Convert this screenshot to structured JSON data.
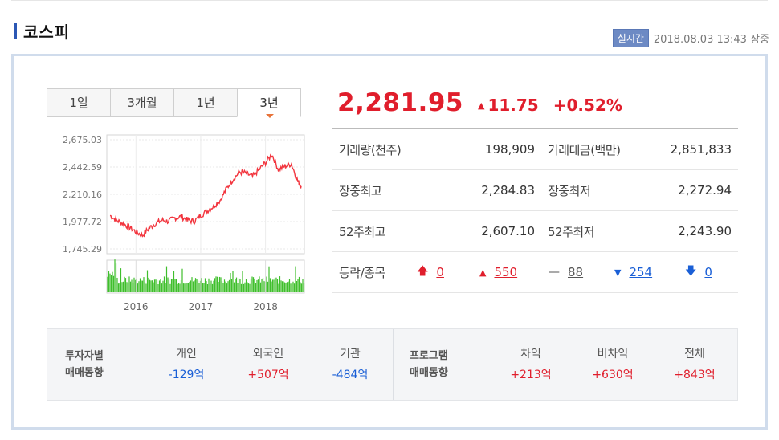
{
  "header": {
    "title": "코스피",
    "badge": "실시간",
    "datetime": "2018.08.03 13:43 장중"
  },
  "tabs": [
    {
      "label": "1일",
      "active": false
    },
    {
      "label": "3개월",
      "active": false
    },
    {
      "label": "1년",
      "active": false
    },
    {
      "label": "3년",
      "active": true
    }
  ],
  "quote": {
    "price": "2,281.95",
    "change": "11.75",
    "change_pct": "+0.52%",
    "direction_icon": "triangle-up-icon",
    "color_up": "#e01e2c"
  },
  "stats": {
    "rows": [
      {
        "l1": "거래량(천주)",
        "v1": "198,909",
        "l2": "거래대금(백만)",
        "v2": "2,851,833"
      },
      {
        "l1": "장중최고",
        "v1": "2,284.83",
        "l2": "장중최저",
        "v2": "2,272.94"
      },
      {
        "l1": "52주최고",
        "v1": "2,607.10",
        "l2": "52주최저",
        "v2": "2,243.90"
      }
    ],
    "updown_label": "등락/종목",
    "updown": [
      {
        "icon": "arrow-up-limit-icon",
        "glyph": "🠅",
        "value": "0",
        "color": "red"
      },
      {
        "icon": "triangle-up-icon",
        "glyph": "▲",
        "value": "550",
        "color": "red"
      },
      {
        "icon": "dash-unchanged-icon",
        "glyph": "—",
        "value": "88",
        "color": "gray"
      },
      {
        "icon": "triangle-down-icon",
        "glyph": "▼",
        "value": "254",
        "color": "blue"
      },
      {
        "icon": "arrow-down-limit-icon",
        "glyph": "🠇",
        "value": "0",
        "color": "blue"
      }
    ]
  },
  "investors": {
    "head1": [
      "투자자별",
      "매매동향"
    ],
    "group1": [
      {
        "label": "개인",
        "value": "-129억",
        "color": "blue"
      },
      {
        "label": "외국인",
        "value": "+507억",
        "color": "red"
      },
      {
        "label": "기관",
        "value": "-484억",
        "color": "blue"
      }
    ],
    "head2": [
      "프로그램",
      "매매동향"
    ],
    "group2": [
      {
        "label": "차익",
        "value": "+213억",
        "color": "red"
      },
      {
        "label": "비차익",
        "value": "+630억",
        "color": "red"
      },
      {
        "label": "전체",
        "value": "+843억",
        "color": "red"
      }
    ]
  },
  "chart_data": {
    "type": "line",
    "y_ticks": [
      "2,675.03",
      "2,442.59",
      "2,210.16",
      "1,977.72",
      "1,745.29"
    ],
    "ylim": [
      1745.29,
      2675.03
    ],
    "x_ticks": [
      "2016",
      "2017",
      "2018"
    ],
    "line_color": "#f2353e",
    "volume_color": "#3fbf2c",
    "x": [
      2015.6,
      2015.7,
      2015.8,
      2015.9,
      2016.0,
      2016.1,
      2016.2,
      2016.3,
      2016.4,
      2016.5,
      2016.6,
      2016.7,
      2016.8,
      2016.9,
      2017.0,
      2017.1,
      2017.2,
      2017.3,
      2017.4,
      2017.5,
      2017.6,
      2017.7,
      2017.8,
      2017.9,
      2018.0,
      2018.1,
      2018.2,
      2018.3,
      2018.4,
      2018.5,
      2018.55
    ],
    "y": [
      2030,
      1990,
      1960,
      1930,
      1890,
      1860,
      1920,
      1960,
      1990,
      1980,
      2010,
      2020,
      1990,
      1980,
      2030,
      2070,
      2110,
      2160,
      2260,
      2340,
      2400,
      2390,
      2360,
      2420,
      2480,
      2550,
      2420,
      2450,
      2470,
      2320,
      2280
    ]
  }
}
